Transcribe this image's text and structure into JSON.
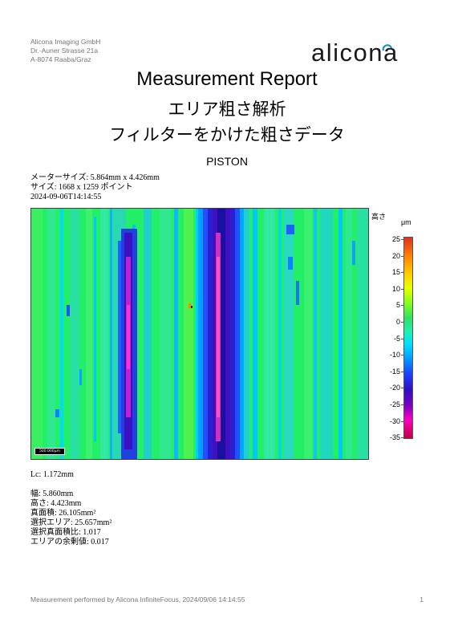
{
  "company": {
    "name": "Alicona Imaging GmbH",
    "street": "Dr.-Auner Strasse 21a",
    "city": "A-8074 Raaba/Graz"
  },
  "logo": {
    "text": "alicona",
    "accent_color": "#1e8fd6"
  },
  "header": {
    "title": "Measurement Report",
    "subtitle_line1": "エリア粗さ解析",
    "subtitle_line2": "フィルターをかけた粗さデータ",
    "sample_name": "PISTON"
  },
  "meta": {
    "meter_size": "メーターサイズ: 5.864mm x 4.426mm",
    "size": "サイズ: 1668 x 1259 ポイント",
    "timestamp": "2024-09-06T14:14:55"
  },
  "image": {
    "scale_bar_label": "500.000μm"
  },
  "color_scale": {
    "title": "高さ",
    "unit": "μm",
    "ticks": [
      "25",
      "20",
      "15",
      "10",
      "5",
      "0",
      "-5",
      "-10",
      "-15",
      "-20",
      "-25",
      "-30",
      "-35"
    ]
  },
  "params": {
    "lc": "Lc: 1.172mm",
    "width": "幅: 5.860mm",
    "height": "高さ: 4.423mm",
    "true_area": "真面積: 26.105mm²",
    "selected_area": "選択エリア: 25.657mm²",
    "selected_true_area_ratio": "選択真面積比: 1.017",
    "area_surplus": "エリアの余剰値: 0.017"
  },
  "footer": {
    "text": "Measurement performed by Alicona InfiniteFocus, 2024/09/06 14:14:55",
    "page": "1"
  }
}
